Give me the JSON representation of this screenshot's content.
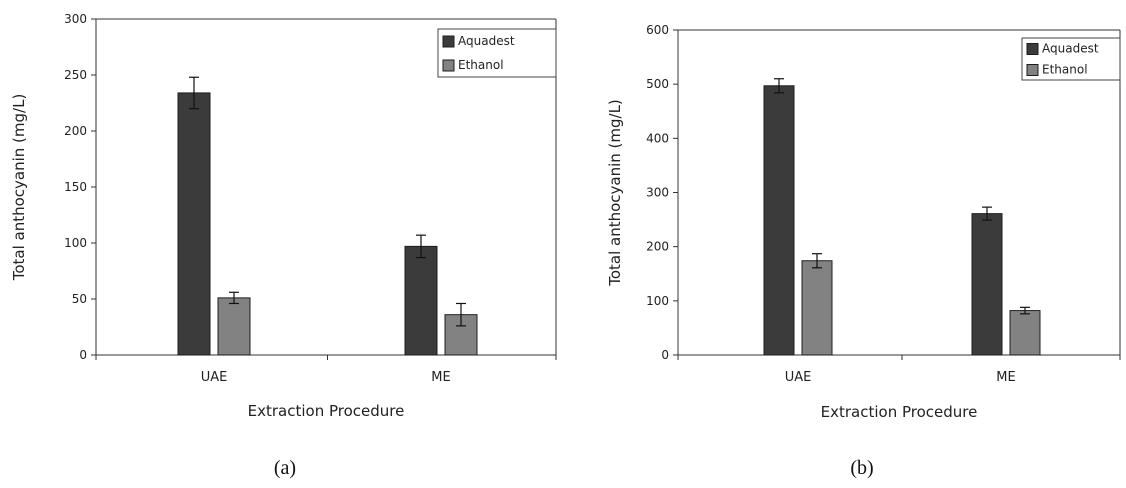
{
  "figure": {
    "panel_labels": [
      "(a)",
      "(b)"
    ]
  },
  "colors": {
    "aquadest": "#3b3b3b",
    "ethanol": "#828282",
    "axis": "#333333"
  },
  "chart_data": [
    {
      "type": "bar",
      "categories": [
        "UAE",
        "ME"
      ],
      "series": [
        {
          "name": "Aquadest",
          "values": [
            234,
            97
          ],
          "errors": [
            14,
            10
          ]
        },
        {
          "name": "Ethanol",
          "values": [
            51,
            36
          ],
          "errors": [
            5,
            10
          ]
        }
      ],
      "xlabel": "Extraction Procedure",
      "ylabel": "Total anthocyanin (mg/L)",
      "ylim": [
        0,
        300
      ],
      "yticks": [
        0,
        50,
        100,
        150,
        200,
        250,
        300
      ],
      "grid": false,
      "legend": "top-right"
    },
    {
      "type": "bar",
      "categories": [
        "UAE",
        "ME"
      ],
      "series": [
        {
          "name": "Aquadest",
          "values": [
            497,
            261
          ],
          "errors": [
            13,
            12
          ]
        },
        {
          "name": "Ethanol",
          "values": [
            174,
            82
          ],
          "errors": [
            13,
            6
          ]
        }
      ],
      "xlabel": "Extraction Procedure",
      "ylabel": "Total anthocyanin (mg/L)",
      "ylim": [
        0,
        600
      ],
      "yticks": [
        0,
        100,
        200,
        300,
        400,
        500,
        600
      ],
      "grid": false,
      "legend": "top-right"
    }
  ]
}
